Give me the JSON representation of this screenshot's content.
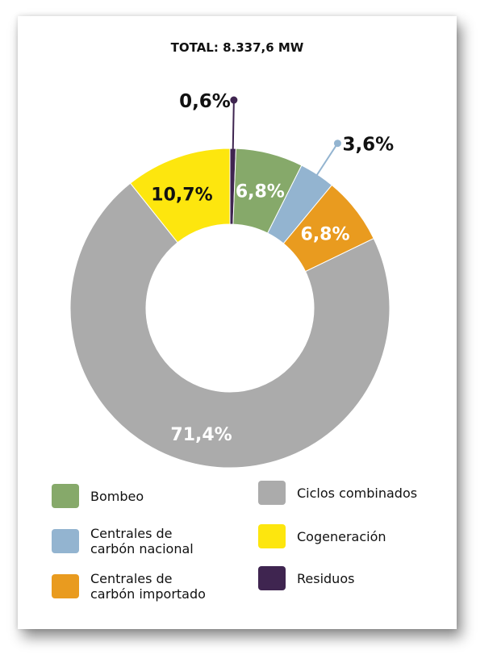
{
  "chart_data": {
    "type": "pie",
    "style": "donut",
    "title": "TOTAL: 8.337,6 MW",
    "categories": [
      "Residuos",
      "Bombeo",
      "Centrales de carbón nacional",
      "Centrales de carbón importado",
      "Ciclos combinados",
      "Cogeneración"
    ],
    "values": [
      0.6,
      6.8,
      3.6,
      6.8,
      71.4,
      10.7
    ],
    "labels": [
      "0,6%",
      "6,8%",
      "3,6%",
      "6,8%",
      "71,4%",
      "10,7%"
    ],
    "colors": [
      "#3f2550",
      "#86a96a",
      "#93b4d0",
      "#e99b1f",
      "#ababab",
      "#fde60e"
    ],
    "label_colors": [
      "#111111",
      "#ffffff",
      "#111111",
      "#ffffff",
      "#ffffff",
      "#111111"
    ],
    "legend": [
      {
        "label": "Bombeo",
        "color": "#86a96a"
      },
      {
        "label": "Ciclos combinados",
        "color": "#ababab"
      },
      {
        "label": "Centrales de\ncarbón nacional",
        "color": "#93b4d0"
      },
      {
        "label": "Cogeneración",
        "color": "#fde60e"
      },
      {
        "label": "Centrales de\ncarbón importado",
        "color": "#e99b1f"
      },
      {
        "label": "Residuos",
        "color": "#3f2550"
      }
    ]
  }
}
